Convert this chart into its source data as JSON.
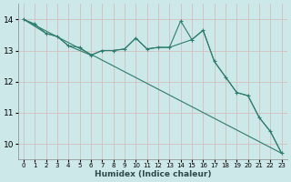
{
  "xlabel": "Humidex (Indice chaleur)",
  "background_color": "#cce8e8",
  "grid_color": "#c0d8d8",
  "line_color": "#2e7d6e",
  "xlim": [
    0,
    23
  ],
  "ylim": [
    9.5,
    14.5
  ],
  "yticks": [
    10,
    11,
    12,
    13,
    14
  ],
  "xticks": [
    0,
    1,
    2,
    3,
    4,
    5,
    6,
    7,
    8,
    9,
    10,
    11,
    12,
    13,
    14,
    15,
    16,
    17,
    18,
    19,
    20,
    21,
    22,
    23
  ],
  "line1_x": [
    0,
    1,
    2,
    3,
    4,
    5,
    6,
    7,
    8,
    9,
    10,
    11,
    12,
    13,
    14,
    15,
    16,
    17,
    18,
    19,
    20,
    21,
    22,
    23
  ],
  "line1_y": [
    14.0,
    13.85,
    13.55,
    13.45,
    13.15,
    13.1,
    12.85,
    13.0,
    13.0,
    13.05,
    13.4,
    13.05,
    13.1,
    13.1,
    13.95,
    13.35,
    13.65,
    12.65,
    12.15,
    11.65,
    11.55,
    10.85,
    10.4,
    9.7
  ],
  "line2_x": [
    0,
    2,
    3,
    4,
    6,
    7,
    8,
    9,
    10,
    11,
    12,
    13,
    15,
    16,
    17,
    18,
    19,
    20,
    21,
    22,
    23
  ],
  "line2_y": [
    14.0,
    13.55,
    13.45,
    13.15,
    12.85,
    13.0,
    13.0,
    13.05,
    13.4,
    13.05,
    13.1,
    13.1,
    13.35,
    13.65,
    12.65,
    12.15,
    11.65,
    11.55,
    10.85,
    10.4,
    9.7
  ],
  "line3_x": [
    0,
    23
  ],
  "line3_y": [
    14.0,
    9.7
  ]
}
